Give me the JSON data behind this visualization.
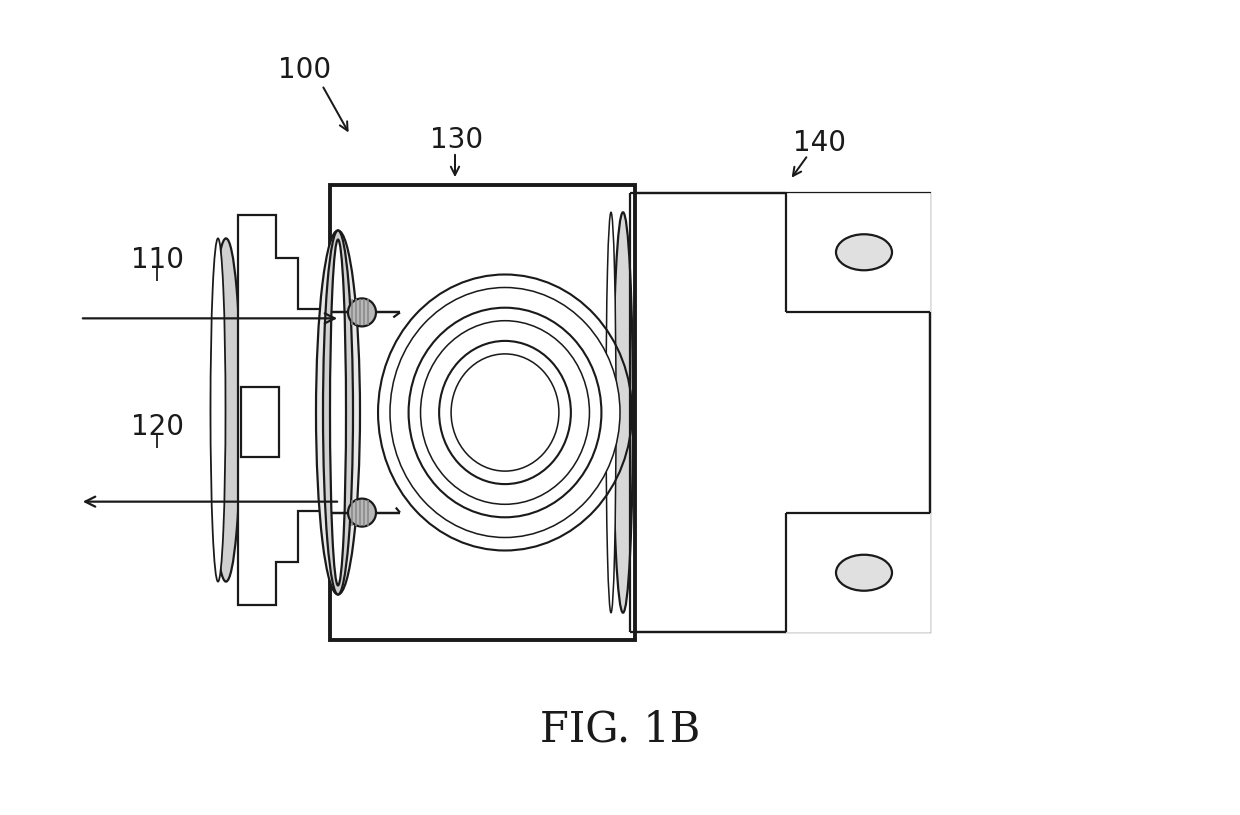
{
  "background_color": "#ffffff",
  "line_color": "#1a1a1a",
  "lw": 1.6,
  "lw_thick": 2.8,
  "fig_label": "FIG. 1B",
  "fig_label_fontsize": 30,
  "label_fontsize": 20,
  "label_100": "100",
  "label_110": "110",
  "label_120": "120",
  "label_130": "130",
  "label_140": "140"
}
